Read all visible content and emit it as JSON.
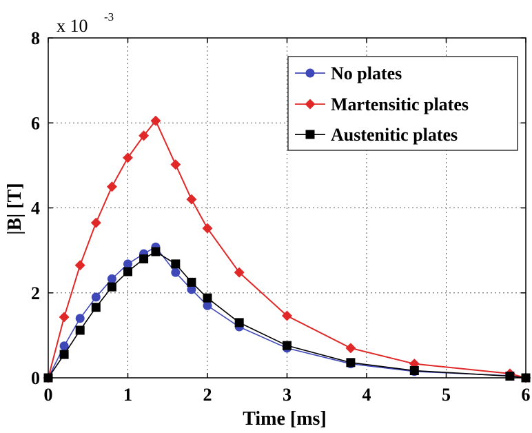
{
  "chart_data": {
    "type": "line",
    "xlabel": "Time [ms]",
    "ylabel": "|B| [T]",
    "y_multiplier": {
      "base": "x 10",
      "exponent": "-3"
    },
    "xlim": [
      0,
      6
    ],
    "ylim": [
      0,
      8
    ],
    "x_ticks": [
      0,
      1,
      2,
      3,
      4,
      5,
      6
    ],
    "y_ticks": [
      0,
      2,
      4,
      6,
      8
    ],
    "grid": true,
    "legend_position": "top-right",
    "series": [
      {
        "name": "No plates",
        "color": "#3f48b8",
        "marker": "circle",
        "x": [
          0,
          0.2,
          0.4,
          0.6,
          0.8,
          1.0,
          1.2,
          1.35,
          1.6,
          1.8,
          2.0,
          2.4,
          3.0,
          3.8,
          4.6,
          5.8,
          6.0
        ],
        "y": [
          0,
          0.75,
          1.4,
          1.9,
          2.33,
          2.68,
          2.92,
          3.08,
          2.48,
          2.08,
          1.7,
          1.2,
          0.7,
          0.33,
          0.15,
          0.05,
          0
        ]
      },
      {
        "name": "Martensitic plates",
        "color": "#e02828",
        "marker": "diamond",
        "x": [
          0,
          0.2,
          0.4,
          0.6,
          0.8,
          1.0,
          1.2,
          1.35,
          1.6,
          1.8,
          2.0,
          2.4,
          3.0,
          3.8,
          4.6,
          5.8,
          6.0
        ],
        "y": [
          0,
          1.43,
          2.65,
          3.65,
          4.5,
          5.18,
          5.7,
          6.05,
          5.02,
          4.2,
          3.52,
          2.48,
          1.46,
          0.7,
          0.33,
          0.1,
          0
        ]
      },
      {
        "name": "Austenitic plates",
        "color": "#000000",
        "marker": "square",
        "x": [
          0,
          0.2,
          0.4,
          0.6,
          0.8,
          1.0,
          1.2,
          1.35,
          1.6,
          1.8,
          2.0,
          2.4,
          3.0,
          3.8,
          4.6,
          5.8,
          6.0
        ],
        "y": [
          0,
          0.55,
          1.12,
          1.66,
          2.14,
          2.5,
          2.8,
          2.97,
          2.68,
          2.25,
          1.88,
          1.3,
          0.76,
          0.36,
          0.17,
          0.04,
          0
        ]
      }
    ]
  }
}
